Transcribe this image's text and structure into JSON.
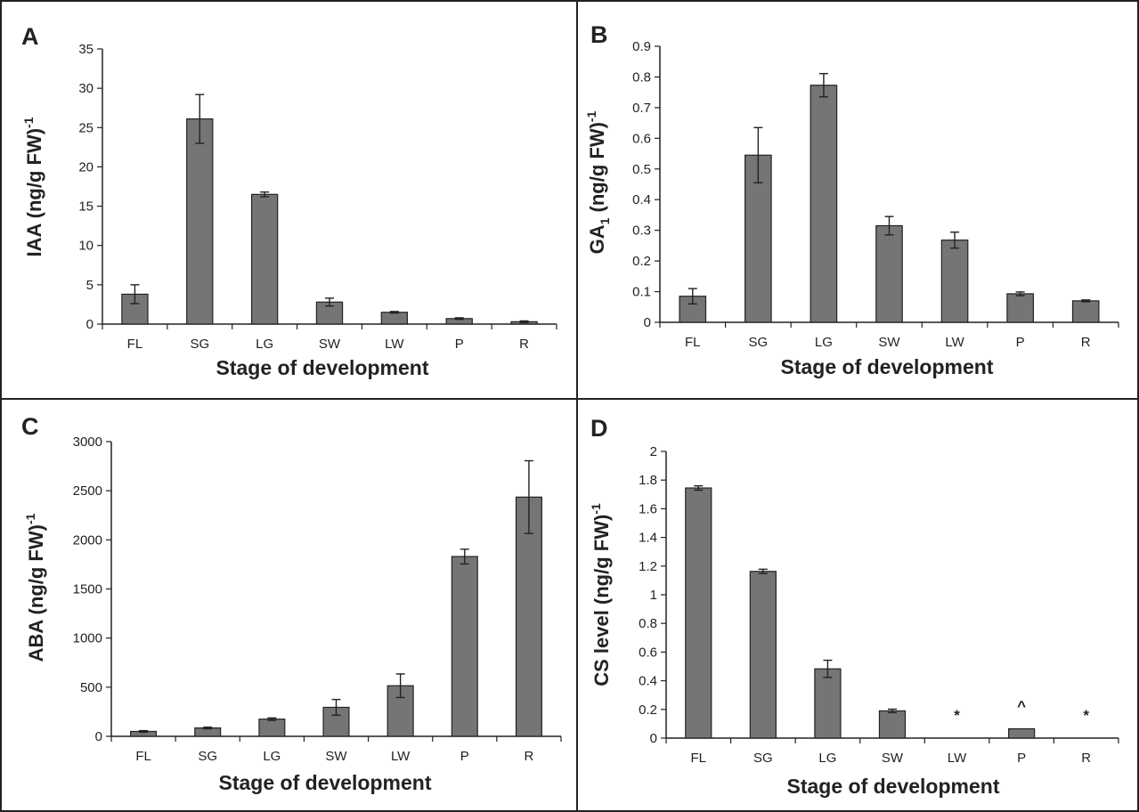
{
  "figure": {
    "panel_bar_color": "#757575",
    "frame_color": "#222222"
  },
  "chart_data": [
    {
      "panel": "A",
      "type": "bar",
      "categories": [
        "FL",
        "SG",
        "LG",
        "SW",
        "LW",
        "P",
        "R"
      ],
      "values": [
        3.8,
        26.1,
        16.5,
        2.8,
        1.5,
        0.7,
        0.3
      ],
      "errors": [
        1.2,
        3.1,
        0.3,
        0.5,
        0.1,
        0.1,
        0.1
      ],
      "xlabel": "Stage of development",
      "ylabel": "IAA (ng/g FW)",
      "ylabel_sup": "-1",
      "ylim": [
        0,
        35
      ],
      "yticks": [
        0,
        5,
        10,
        15,
        20,
        25,
        30,
        35
      ],
      "ytick_labels": [
        "0",
        "5",
        "10",
        "15",
        "20",
        "25",
        "30",
        "35"
      ],
      "markers": [
        "",
        "",
        "",
        "",
        "",
        "",
        ""
      ]
    },
    {
      "panel": "B",
      "type": "bar",
      "categories": [
        "FL",
        "SG",
        "LG",
        "SW",
        "LW",
        "P",
        "R"
      ],
      "values": [
        0.085,
        0.545,
        0.773,
        0.315,
        0.268,
        0.093,
        0.07
      ],
      "errors": [
        0.025,
        0.09,
        0.038,
        0.03,
        0.026,
        0.006,
        0.003
      ],
      "xlabel": "Stage of development",
      "ylabel": "GA",
      "ylabel_sub": "1",
      "ylabel_rest": " (ng/g FW)",
      "ylabel_sup": "-1",
      "ylim": [
        0,
        0.9
      ],
      "yticks": [
        0,
        0.1,
        0.2,
        0.3,
        0.4,
        0.5,
        0.6,
        0.7,
        0.8,
        0.9
      ],
      "ytick_labels": [
        "0",
        "0.1",
        "0.2",
        "0.3",
        "0.4",
        "0.5",
        "0.6",
        "0.7",
        "0.8",
        "0.9"
      ],
      "markers": [
        "",
        "",
        "",
        "",
        "",
        "",
        ""
      ]
    },
    {
      "panel": "C",
      "type": "bar",
      "categories": [
        "FL",
        "SG",
        "LG",
        "SW",
        "LW",
        "P",
        "R"
      ],
      "values": [
        50,
        85,
        175,
        295,
        515,
        1830,
        2435
      ],
      "errors": [
        8,
        8,
        12,
        80,
        120,
        75,
        370
      ],
      "xlabel": "Stage of development",
      "ylabel": "ABA (ng/g FW)",
      "ylabel_sup": "-1",
      "ylim": [
        0,
        3000
      ],
      "yticks": [
        0,
        500,
        1000,
        1500,
        2000,
        2500,
        3000
      ],
      "ytick_labels": [
        "0",
        "500",
        "1000",
        "1500",
        "2000",
        "2500",
        "3000"
      ],
      "markers": [
        "",
        "",
        "",
        "",
        "",
        "",
        ""
      ]
    },
    {
      "panel": "D",
      "type": "bar",
      "categories": [
        "FL",
        "SG",
        "LG",
        "SW",
        "LW",
        "P",
        "R"
      ],
      "values": [
        1.745,
        1.163,
        0.483,
        0.19,
        0,
        0.065,
        0
      ],
      "errors": [
        0.015,
        0.015,
        0.06,
        0.012,
        0,
        0,
        0
      ],
      "xlabel": "Stage of development",
      "ylabel": "CS level (ng/g FW)",
      "ylabel_sup": "-1",
      "ylim": [
        0,
        2
      ],
      "yticks": [
        0,
        0.2,
        0.4,
        0.6,
        0.8,
        1.0,
        1.2,
        1.4,
        1.6,
        1.8,
        2.0
      ],
      "ytick_labels": [
        "0",
        "0.2",
        "0.4",
        "0.6",
        "0.8",
        "1",
        "1.2",
        "1.4",
        "1.6",
        "1.8",
        "2"
      ],
      "markers": [
        "",
        "",
        "",
        "",
        "*",
        "^",
        "*"
      ]
    }
  ]
}
